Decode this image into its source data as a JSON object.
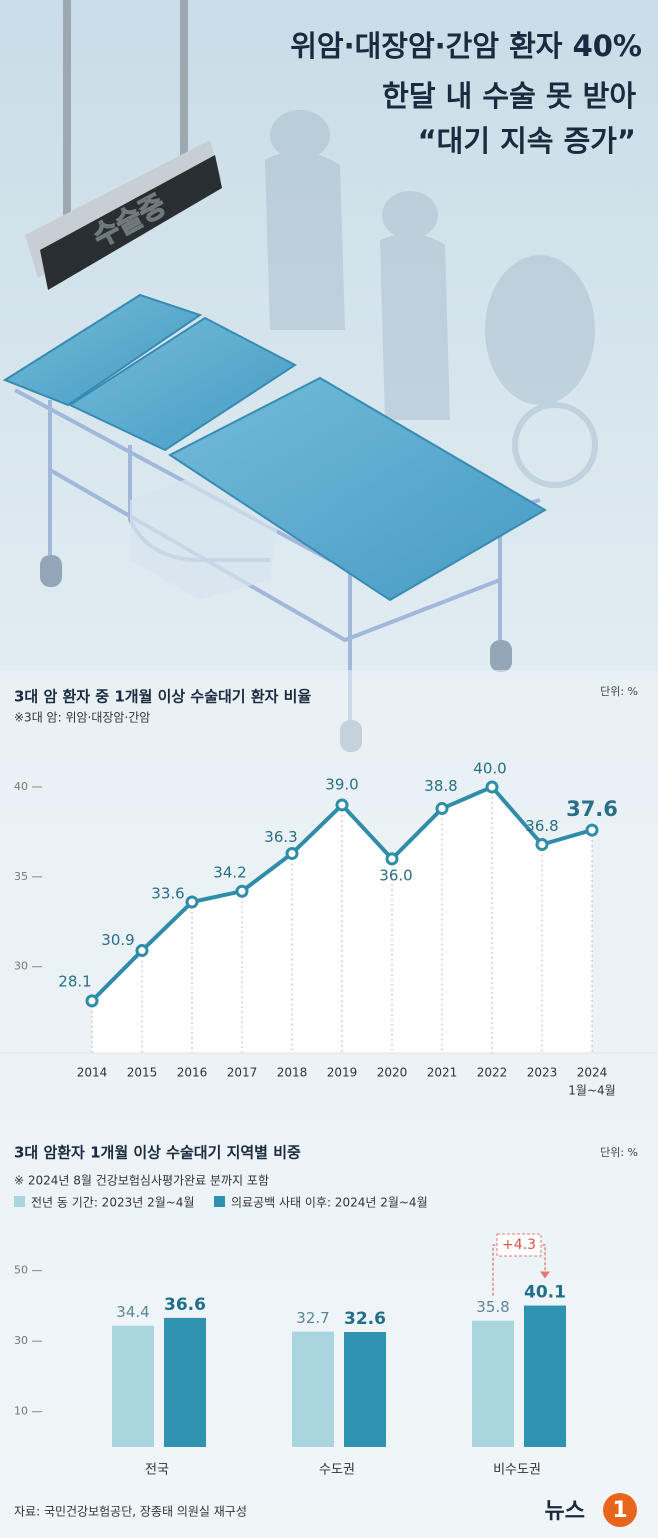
{
  "header": {
    "title_lines": [
      "위암·대장암·간암 환자 40%",
      "한달 내 수술 못 받아",
      "“대기 지속 증가”"
    ]
  },
  "illustration_sign": "수술중",
  "chart_data": [
    {
      "type": "line",
      "title": "3대 암 환자 중 1개월 이상 수술대기 환자 비율",
      "note": "※3대 암: 위암·대장암·간암",
      "unit": "단위: %",
      "categories": [
        "2014",
        "2015",
        "2016",
        "2017",
        "2018",
        "2019",
        "2020",
        "2021",
        "2022",
        "2023",
        "2024"
      ],
      "last_category_note": "1월~4월",
      "values": [
        28.1,
        30.9,
        33.6,
        34.2,
        36.3,
        39.0,
        36.0,
        38.8,
        40.0,
        36.8,
        37.6
      ],
      "value_labels": [
        "28.1",
        "30.9",
        "33.6",
        "34.2",
        "36.3",
        "39.0",
        "36.0",
        "38.8",
        "40.0",
        "36.8",
        "37.6"
      ],
      "color": "#2f8daa",
      "ylim": [
        25.2,
        41.5
      ],
      "yticks": [
        30,
        35,
        40
      ]
    },
    {
      "type": "bar",
      "title": "3대 암환자 1개월 이상 수술대기 지역별 비중",
      "note": "※ 2024년 8월 건강보험심사평가완료 분까지 포함",
      "unit": "단위: %",
      "categories": [
        "전국",
        "수도권",
        "비수도권"
      ],
      "series": [
        {
          "name": "전년 동 기간: 2023년 2월~4월",
          "color": "#a9d5df",
          "values": [
            34.4,
            32.7,
            35.8
          ]
        },
        {
          "name": "의료공백 사태 이후: 2024년 2월~4월",
          "color": "#2f92b0",
          "values": [
            36.6,
            32.6,
            40.1
          ]
        }
      ],
      "annotation": "+4.3",
      "ylim": [
        0,
        55
      ],
      "yticks": [
        10,
        30,
        50
      ]
    }
  ],
  "source": "자료: 국민건강보험공단, 장종태 의원실 재구성",
  "logo": [
    "뉴스",
    "1"
  ]
}
